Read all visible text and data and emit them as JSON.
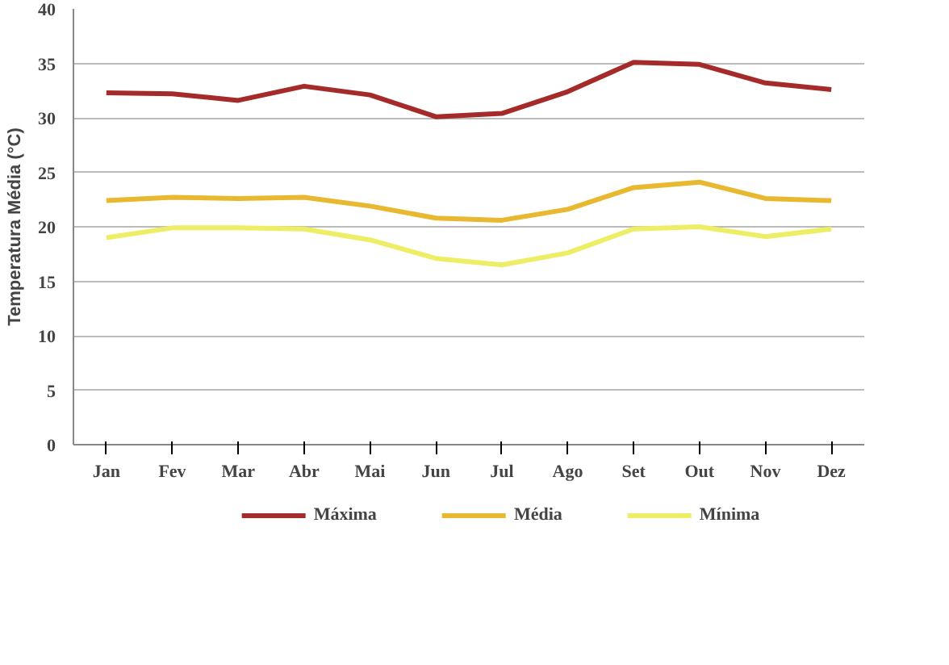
{
  "chart_data": {
    "type": "line",
    "ylabel": "Temperatura Média (°C)",
    "categories": [
      "Jan",
      "Fev",
      "Mar",
      "Abr",
      "Mai",
      "Jun",
      "Jul",
      "Ago",
      "Set",
      "Out",
      "Nov",
      "Dez"
    ],
    "series": [
      {
        "name": "Máxima",
        "color": "#a52a2a",
        "values": [
          32.3,
          32.2,
          31.6,
          32.9,
          32.1,
          30.1,
          30.4,
          32.4,
          35.1,
          34.9,
          33.2,
          32.6
        ]
      },
      {
        "name": "Média",
        "color": "#e8b830",
        "values": [
          22.4,
          22.7,
          22.6,
          22.7,
          21.9,
          20.8,
          20.6,
          21.6,
          23.6,
          24.1,
          22.6,
          22.4
        ]
      },
      {
        "name": "Mínima",
        "color": "#eeee66",
        "values": [
          19.0,
          19.9,
          19.9,
          19.8,
          18.8,
          17.1,
          16.5,
          17.6,
          19.8,
          20.0,
          19.1,
          19.8
        ]
      }
    ],
    "ylim": [
      0,
      40
    ],
    "yticks": [
      0,
      5,
      10,
      15,
      20,
      25,
      30,
      35,
      40
    ],
    "grid": "y",
    "legend": "bottom",
    "marker": "none",
    "line_style": "solid"
  }
}
